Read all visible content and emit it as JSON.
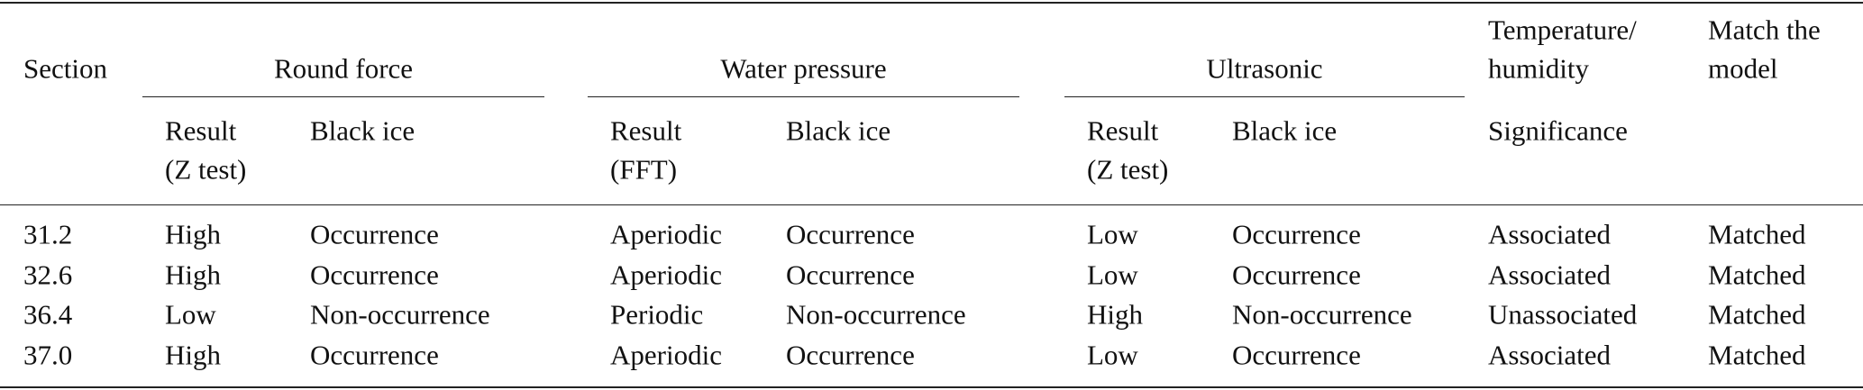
{
  "header": {
    "section": "Section",
    "groups": [
      {
        "label": "Round force",
        "columns": [
          [
            "Result",
            "(Z test)"
          ],
          [
            "Black ice"
          ]
        ]
      },
      {
        "label": "Water pressure",
        "columns": [
          [
            "Result",
            "(FFT)"
          ],
          [
            "Black ice"
          ]
        ]
      },
      {
        "label": "Ultrasonic",
        "columns": [
          [
            "Result",
            "(Z test)"
          ],
          [
            "Black ice"
          ]
        ]
      }
    ],
    "temperature": {
      "label": [
        "Temperature/",
        "humidity"
      ],
      "column": "Significance"
    },
    "match": [
      "Match the",
      "model"
    ]
  },
  "table": {
    "rows": [
      [
        "31.2",
        "High",
        "Occurrence",
        "Aperiodic",
        "Occurrence",
        "Low",
        "Occurrence",
        "Associated",
        "Matched"
      ],
      [
        "32.6",
        "High",
        "Occurrence",
        "Aperiodic",
        "Occurrence",
        "Low",
        "Occurrence",
        "Associated",
        "Matched"
      ],
      [
        "36.4",
        "Low",
        "Non-occurrence",
        "Periodic",
        "Non-occurrence",
        "High",
        "Non-occurrence",
        "Unassociated",
        "Matched"
      ],
      [
        "37.0",
        "High",
        "Occurrence",
        "Aperiodic",
        "Occurrence",
        "Low",
        "Occurrence",
        "Associated",
        "Matched"
      ]
    ]
  }
}
